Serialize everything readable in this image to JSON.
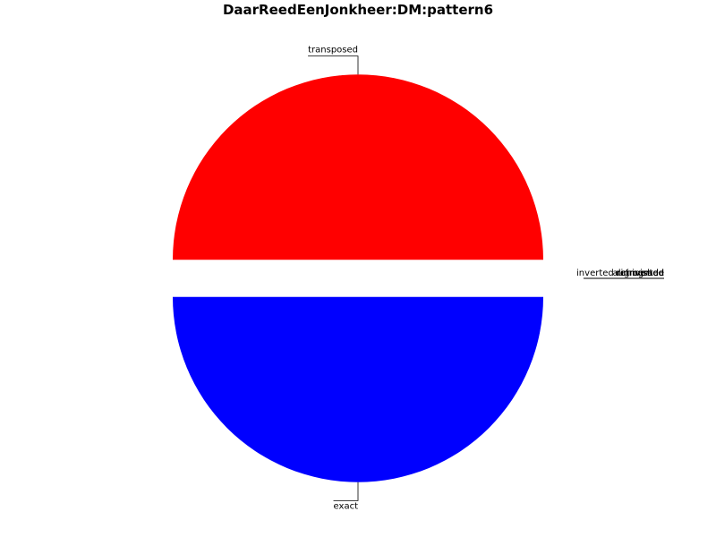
{
  "chart_data": {
    "type": "pie",
    "title": "DaarReedEenJonkheer:DM:pattern6",
    "slices": [
      {
        "label": "transposed",
        "value": 50,
        "color": "#ff0000",
        "explode": 0.1
      },
      {
        "label": "exact",
        "value": 50,
        "color": "#0000ff",
        "explode": 0.1
      },
      {
        "label": "inverted",
        "value": 0,
        "color": "#00aa00"
      },
      {
        "label": "retrograde",
        "value": 0,
        "color": "#00bfbf"
      },
      {
        "label": "inverted retrograde",
        "value": 0,
        "color": "#bf00bf"
      },
      {
        "label": "augmented",
        "value": 0,
        "color": "#bfbf00"
      },
      {
        "label": "diminished",
        "value": 0,
        "color": "#000000"
      }
    ]
  }
}
